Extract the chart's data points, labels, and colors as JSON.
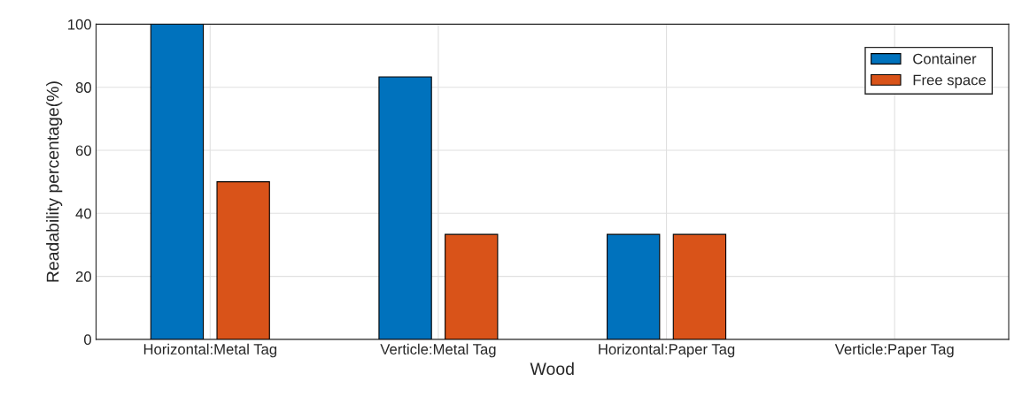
{
  "chart_data": {
    "type": "bar",
    "xlabel": "Wood",
    "ylabel": "Readability percentage(%)",
    "categories": [
      "Horizontal:Metal Tag",
      "Verticle:Metal Tag",
      "Horizontal:Paper Tag",
      "Verticle:Paper Tag"
    ],
    "series": [
      {
        "name": "Container",
        "color": "#0072bd",
        "values": [
          100,
          83.3,
          33.3,
          0
        ]
      },
      {
        "name": "Free space",
        "color": "#d95319",
        "values": [
          50,
          33.3,
          33.3,
          0
        ]
      }
    ],
    "ylim": [
      0,
      100
    ],
    "yticks": [
      0,
      20,
      40,
      60,
      80,
      100
    ],
    "grid": true,
    "legend": "top right"
  }
}
